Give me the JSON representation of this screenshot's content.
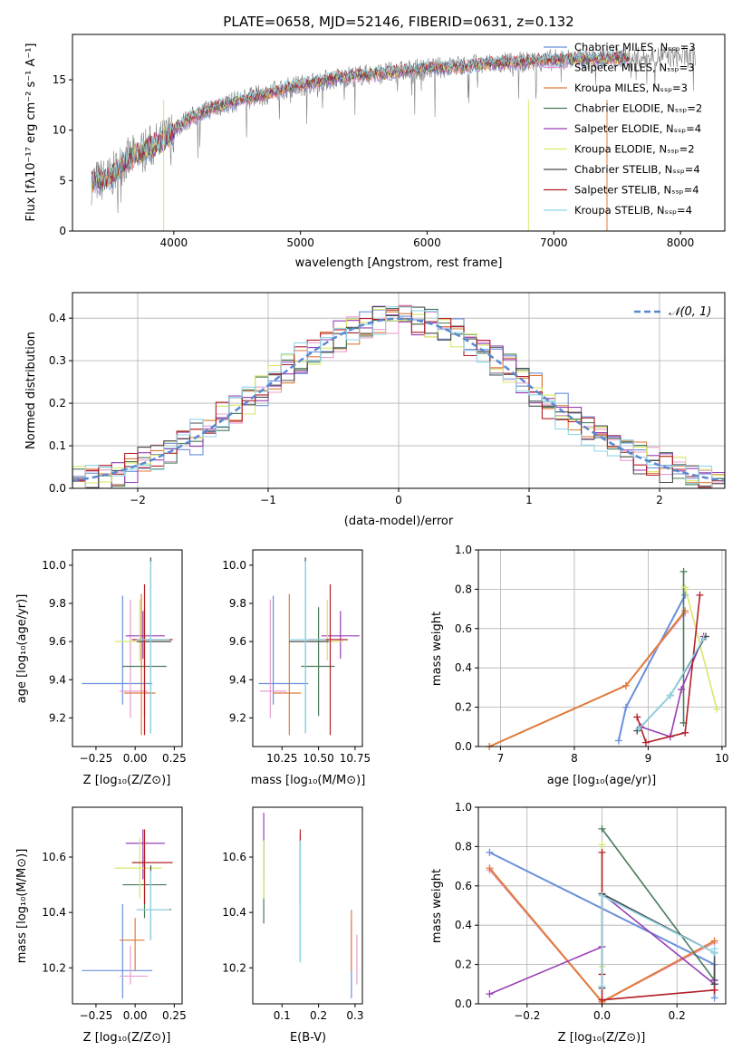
{
  "figure": {
    "title": "PLATE=0658, MJD=52146, FIBERID=0631, z=0.132"
  },
  "chart_data": [
    {
      "id": "spectrum",
      "type": "line",
      "xlabel": "wavelength [Angstrom, rest frame]",
      "ylabel": "Flux [fλ10⁻¹⁷ erg cm⁻² s⁻¹ A⁻¹]",
      "xlim": [
        3200,
        8350
      ],
      "ylim": [
        0,
        19.5
      ],
      "xticks": [
        4000,
        5000,
        6000,
        7000,
        8000
      ],
      "yticks": [
        0,
        5,
        10,
        15
      ],
      "grid": false,
      "legend_position": "top-right",
      "observed_continuum": {
        "x": [
          3350,
          3500,
          3600,
          3700,
          3800,
          3900,
          4000,
          4100,
          4200,
          4300,
          4500,
          4700,
          4900,
          5100,
          5300,
          5500,
          5700,
          5900,
          6100,
          6300,
          6500,
          6700,
          6900,
          7100,
          7300,
          7500,
          7700,
          7900,
          8100
        ],
        "y": [
          4.8,
          5.3,
          6.8,
          7.5,
          8.3,
          8.8,
          10.0,
          11.0,
          11.6,
          12.2,
          12.9,
          13.5,
          14.2,
          14.7,
          15.2,
          15.5,
          15.7,
          16.0,
          16.2,
          16.4,
          16.6,
          16.7,
          16.9,
          17.0,
          17.1,
          17.2,
          17.2,
          17.3,
          17.2
        ]
      },
      "legend": [
        "Chabrier MILES, Nₛₛₚ=3",
        "Salpeter MILES, Nₛₛₚ=3",
        "Kroupa MILES, Nₛₛₚ=3",
        "Chabrier ELODIE, Nₛₛₚ=2",
        "Salpeter ELODIE, Nₛₛₚ=4",
        "Kroupa ELODIE, Nₛₛₚ=2",
        "Chabrier STELIB, Nₛₛₚ=4",
        "Salpeter STELIB, Nₛₛₚ=4",
        "Kroupa STELIB, Nₛₛₚ=4"
      ]
    },
    {
      "id": "residuals",
      "type": "line",
      "xlabel": "(data-model)/error",
      "ylabel": "Normed distribution",
      "xlim": [
        -2.5,
        2.5
      ],
      "ylim": [
        0,
        0.46
      ],
      "xticks": [
        -2,
        -1,
        0,
        1,
        2
      ],
      "yticks": [
        0.0,
        0.1,
        0.2,
        0.3,
        0.4
      ],
      "grid": true,
      "legend_position": "top-right",
      "gaussian_label": "𝒩(0, 1)"
    },
    {
      "id": "age-vs-z",
      "type": "scatter",
      "xlabel": "Z [log₁₀(Z/Z⊙)]",
      "ylabel": "age  [log₁₀(age/yr)]",
      "xlim": [
        -0.4,
        0.3
      ],
      "ylim": [
        9.05,
        10.08
      ],
      "xticks": [
        -0.25,
        0.0,
        0.25
      ],
      "xticklabels": [
        "−0.25",
        "0.00",
        "0.25"
      ],
      "yticks": [
        9.2,
        9.4,
        9.6,
        9.8,
        10.0
      ],
      "grid": false,
      "points": [
        {
          "x": -0.08,
          "y": 9.38,
          "xlo": -0.34,
          "xhi": 0.11,
          "ylo": 9.27,
          "yhi": 9.84
        },
        {
          "x": -0.03,
          "y": 9.34,
          "xlo": -0.1,
          "xhi": 0.08,
          "ylo": 9.2,
          "yhi": 9.82
        },
        {
          "x": 0.04,
          "y": 9.33,
          "xlo": -0.07,
          "xhi": 0.13,
          "ylo": 9.11,
          "yhi": 9.85
        },
        {
          "x": 0.06,
          "y": 9.47,
          "xlo": -0.08,
          "xhi": 0.2,
          "ylo": 9.21,
          "yhi": 9.78
        },
        {
          "x": 0.05,
          "y": 9.63,
          "xlo": -0.06,
          "xhi": 0.19,
          "ylo": 9.51,
          "yhi": 9.76
        },
        {
          "x": 0.03,
          "y": 9.6,
          "xlo": -0.13,
          "xhi": 0.22,
          "ylo": 9.5,
          "yhi": 9.82
        },
        {
          "x": 0.1,
          "y": 9.6,
          "xlo": 0.01,
          "xhi": 0.23,
          "ylo": 9.12,
          "yhi": 10.04
        },
        {
          "x": 0.06,
          "y": 9.61,
          "xlo": -0.02,
          "xhi": 0.24,
          "ylo": 9.11,
          "yhi": 9.9
        },
        {
          "x": 0.1,
          "y": 9.61,
          "xlo": 0.01,
          "xhi": 0.22,
          "ylo": 9.12,
          "yhi": 10.02
        }
      ]
    },
    {
      "id": "age-vs-mass",
      "type": "scatter",
      "xlabel": "mass [log₁₀(M/M⊙)]",
      "xlim": [
        10.05,
        10.8
      ],
      "ylim": [
        9.05,
        10.08
      ],
      "xticks": [
        10.25,
        10.5,
        10.75
      ],
      "xticklabels": [
        "10.25",
        "10.50",
        "10.75"
      ],
      "yticks": [
        9.2,
        9.4,
        9.6,
        9.8,
        10.0
      ],
      "grid": false,
      "points": [
        {
          "x": 10.19,
          "y": 9.38,
          "xlo": 10.09,
          "xhi": 10.43,
          "ylo": 9.27,
          "yhi": 9.84
        },
        {
          "x": 10.17,
          "y": 9.34,
          "xlo": 10.1,
          "xhi": 10.28,
          "ylo": 9.2,
          "yhi": 9.82
        },
        {
          "x": 10.3,
          "y": 9.33,
          "xlo": 10.19,
          "xhi": 10.38,
          "ylo": 9.11,
          "yhi": 9.85
        },
        {
          "x": 10.5,
          "y": 9.47,
          "xlo": 10.38,
          "xhi": 10.61,
          "ylo": 9.21,
          "yhi": 9.78
        },
        {
          "x": 10.65,
          "y": 9.63,
          "xlo": 10.52,
          "xhi": 10.78,
          "ylo": 9.51,
          "yhi": 9.76
        },
        {
          "x": 10.56,
          "y": 9.6,
          "xlo": 10.45,
          "xhi": 10.67,
          "ylo": 9.5,
          "yhi": 9.82
        },
        {
          "x": 10.41,
          "y": 9.6,
          "xlo": 10.3,
          "xhi": 10.57,
          "ylo": 9.12,
          "yhi": 10.04
        },
        {
          "x": 10.58,
          "y": 9.61,
          "xlo": 10.43,
          "xhi": 10.7,
          "ylo": 9.11,
          "yhi": 9.9
        },
        {
          "x": 10.41,
          "y": 9.61,
          "xlo": 10.3,
          "xhi": 10.55,
          "ylo": 9.12,
          "yhi": 10.02
        }
      ]
    },
    {
      "id": "weight-vs-age",
      "type": "line",
      "xlabel": "age  [log₁₀(age/yr)]",
      "ylabel": "mass weight",
      "xlim": [
        6.7,
        10.05
      ],
      "ylim": [
        0,
        1.0
      ],
      "xticks": [
        7,
        8,
        9,
        10
      ],
      "yticks": [
        0.0,
        0.2,
        0.4,
        0.6,
        0.8,
        1.0
      ],
      "grid": true,
      "series": [
        {
          "x": [
            8.6,
            8.7,
            9.5
          ],
          "y": [
            0.03,
            0.2,
            0.77
          ]
        },
        {
          "x": [
            6.85,
            8.7,
            9.5
          ],
          "y": [
            0.0,
            0.31,
            0.68
          ]
        },
        {
          "x": [
            6.85,
            8.7,
            9.5
          ],
          "y": [
            0.0,
            0.31,
            0.69
          ]
        },
        {
          "x": [
            9.48,
            9.48
          ],
          "y": [
            0.12,
            0.89
          ]
        },
        {
          "x": [
            8.9,
            9.3,
            9.45,
            9.75
          ],
          "y": [
            0.1,
            0.05,
            0.29,
            0.56
          ]
        },
        {
          "x": [
            9.5,
            9.93
          ],
          "y": [
            0.81,
            0.19
          ]
        },
        {
          "x": [
            8.85,
            9.3,
            9.78
          ],
          "y": [
            0.08,
            0.26,
            0.56
          ]
        },
        {
          "x": [
            8.85,
            8.97,
            9.5,
            9.7
          ],
          "y": [
            0.15,
            0.02,
            0.07,
            0.77
          ]
        },
        {
          "x": [
            8.87,
            9.3,
            9.75
          ],
          "y": [
            0.09,
            0.26,
            0.55
          ]
        }
      ]
    },
    {
      "id": "mass-vs-z",
      "type": "scatter",
      "xlabel": "Z [log₁₀(Z/Z⊙)]",
      "ylabel": "mass [log₁₀(M/M⊙)]",
      "xlim": [
        -0.4,
        0.3
      ],
      "ylim": [
        10.07,
        10.78
      ],
      "xticks": [
        -0.25,
        0.0,
        0.25
      ],
      "xticklabels": [
        "−0.25",
        "0.00",
        "0.25"
      ],
      "yticks": [
        10.2,
        10.4,
        10.6
      ],
      "grid": false,
      "points": [
        {
          "x": -0.08,
          "y": 10.19,
          "xlo": -0.34,
          "xhi": 0.11,
          "ylo": 10.09,
          "yhi": 10.43
        },
        {
          "x": -0.03,
          "y": 10.17,
          "xlo": -0.1,
          "xhi": 0.08,
          "ylo": 10.14,
          "yhi": 10.28
        },
        {
          "x": 0.0,
          "y": 10.3,
          "xlo": -0.1,
          "xhi": 0.06,
          "ylo": 10.19,
          "yhi": 10.38
        },
        {
          "x": 0.06,
          "y": 10.5,
          "xlo": -0.08,
          "xhi": 0.2,
          "ylo": 10.38,
          "yhi": 10.61
        },
        {
          "x": 0.05,
          "y": 10.65,
          "xlo": -0.06,
          "xhi": 0.19,
          "ylo": 10.52,
          "yhi": 10.7
        },
        {
          "x": 0.03,
          "y": 10.56,
          "xlo": -0.13,
          "xhi": 0.17,
          "ylo": 10.45,
          "yhi": 10.67
        },
        {
          "x": 0.1,
          "y": 10.41,
          "xlo": 0.01,
          "xhi": 0.23,
          "ylo": 10.3,
          "yhi": 10.57
        },
        {
          "x": 0.06,
          "y": 10.58,
          "xlo": -0.02,
          "xhi": 0.24,
          "ylo": 10.43,
          "yhi": 10.7
        },
        {
          "x": 0.1,
          "y": 10.41,
          "xlo": 0.01,
          "xhi": 0.22,
          "ylo": 10.3,
          "yhi": 10.55
        }
      ]
    },
    {
      "id": "mass-vs-ebv",
      "type": "scatter",
      "xlabel": "E(B-V)",
      "xlim": [
        0.02,
        0.32
      ],
      "ylim": [
        10.07,
        10.78
      ],
      "xticks": [
        0.1,
        0.2,
        0.3
      ],
      "xticklabels": [
        "0.1",
        "0.2",
        "0.3"
      ],
      "yticks": [
        10.2,
        10.4,
        10.6
      ],
      "grid": false,
      "points": [
        {
          "x": 0.29,
          "y": 10.19,
          "ylo": 10.09,
          "yhi": 10.37
        },
        {
          "x": 0.305,
          "y": 10.22,
          "ylo": 10.14,
          "yhi": 10.32
        },
        {
          "x": 0.29,
          "y": 10.3,
          "ylo": 10.19,
          "yhi": 10.41
        },
        {
          "x": 0.05,
          "y": 10.5,
          "ylo": 10.36,
          "yhi": 10.66
        },
        {
          "x": 0.05,
          "y": 10.65,
          "ylo": 10.52,
          "yhi": 10.76
        },
        {
          "x": 0.05,
          "y": 10.56,
          "ylo": 10.45,
          "yhi": 10.66
        },
        {
          "x": 0.15,
          "y": 10.41,
          "ylo": 10.22,
          "yhi": 10.68
        },
        {
          "x": 0.15,
          "y": 10.58,
          "ylo": 10.43,
          "yhi": 10.7
        },
        {
          "x": 0.15,
          "y": 10.41,
          "ylo": 10.22,
          "yhi": 10.66
        }
      ]
    },
    {
      "id": "weight-vs-z",
      "type": "line",
      "xlabel": "Z [log₁₀(Z/Z⊙)]",
      "ylabel": "mass weight",
      "xlim": [
        -0.33,
        0.33
      ],
      "ylim": [
        0,
        1.0
      ],
      "xticks": [
        -0.2,
        0.0,
        0.2
      ],
      "xticklabels": [
        "−0.2",
        "0.0",
        "0.2"
      ],
      "yticks": [
        0.0,
        0.2,
        0.4,
        0.6,
        0.8,
        1.0
      ],
      "grid": true,
      "series": [
        {
          "x": [
            -0.3,
            0.3,
            0.3
          ],
          "y": [
            0.77,
            0.2,
            0.03
          ]
        },
        {
          "x": [
            -0.3,
            0.0,
            0.3
          ],
          "y": [
            0.68,
            0.01,
            0.31
          ]
        },
        {
          "x": [
            -0.3,
            0.0,
            0.3
          ],
          "y": [
            0.69,
            0.01,
            0.32
          ]
        },
        {
          "x": [
            0.0,
            0.3
          ],
          "y": [
            0.89,
            0.12
          ]
        },
        {
          "x": [
            -0.3,
            0.0,
            0.0,
            0.3,
            0.3
          ],
          "y": [
            0.05,
            0.29,
            0.56,
            0.1,
            0.12
          ]
        },
        {
          "x": [
            0.0,
            0.0
          ],
          "y": [
            0.81,
            0.19
          ]
        },
        {
          "x": [
            0.0,
            0.0,
            0.3,
            0.3
          ],
          "y": [
            0.08,
            0.56,
            0.26,
            0.1
          ]
        },
        {
          "x": [
            0.0,
            0.0,
            0.0,
            0.3
          ],
          "y": [
            0.77,
            0.15,
            0.02,
            0.07
          ]
        },
        {
          "x": [
            0.0,
            0.0,
            0.3,
            0.3
          ],
          "y": [
            0.09,
            0.55,
            0.26,
            0.28
          ]
        }
      ]
    }
  ],
  "colors": {
    "series": [
      "#6b8fdb",
      "#e8a0d0",
      "#e07b39",
      "#4a7a5a",
      "#9a3fb5",
      "#d9e86a",
      "#4a4a4a",
      "#b3202a",
      "#8fd6e8"
    ],
    "gaussian": "#5a88d0",
    "observed": "#808080",
    "grid": "#b0b0b0"
  }
}
